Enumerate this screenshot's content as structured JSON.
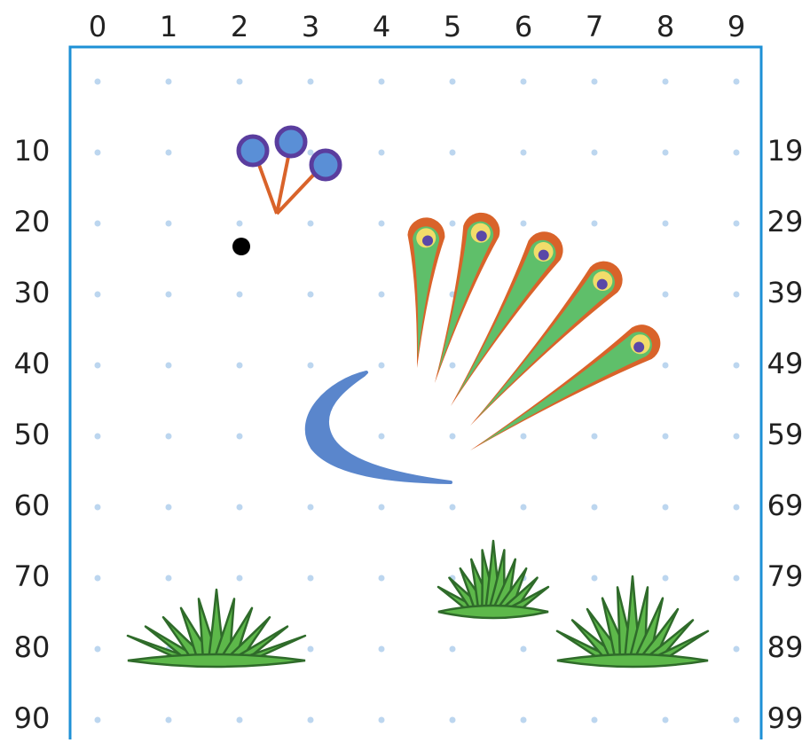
{
  "top": [
    0,
    1,
    2,
    3,
    4,
    5,
    6,
    7,
    8,
    9
  ],
  "left": [
    10,
    20,
    30,
    40,
    50,
    60,
    70,
    80,
    90
  ],
  "right": [
    19,
    29,
    39,
    49,
    59,
    69,
    79,
    89,
    99
  ]
}
